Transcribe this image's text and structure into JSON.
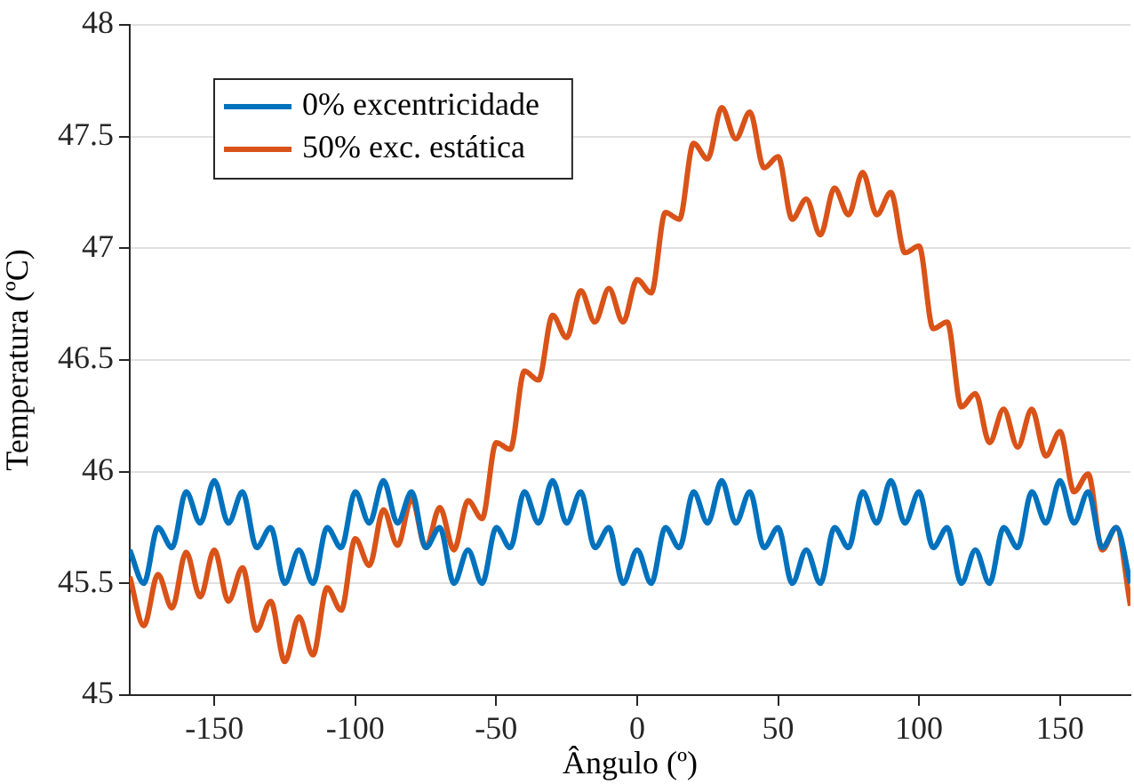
{
  "chart_data": {
    "type": "line",
    "xlabel": "Ângulo (º)",
    "ylabel": "Temperatura (ºC)",
    "x": [
      -180,
      -175,
      -170,
      -165,
      -160,
      -155,
      -150,
      -145,
      -140,
      -135,
      -130,
      -125,
      -120,
      -115,
      -110,
      -105,
      -100,
      -95,
      -90,
      -85,
      -80,
      -75,
      -70,
      -65,
      -60,
      -55,
      -50,
      -45,
      -40,
      -35,
      -30,
      -25,
      -20,
      -15,
      -10,
      -5,
      0,
      5,
      10,
      15,
      20,
      25,
      30,
      35,
      40,
      45,
      50,
      55,
      60,
      65,
      70,
      75,
      80,
      85,
      90,
      95,
      100,
      105,
      110,
      115,
      120,
      125,
      130,
      135,
      140,
      145,
      150,
      155,
      160,
      165,
      170,
      175
    ],
    "series": [
      {
        "name": "0% excentricidade",
        "color": "#0072bd",
        "values": [
          45.65,
          45.5,
          45.75,
          45.66,
          45.91,
          45.77,
          45.96,
          45.77,
          45.91,
          45.66,
          45.75,
          45.5,
          45.65,
          45.5,
          45.75,
          45.66,
          45.91,
          45.77,
          45.96,
          45.77,
          45.91,
          45.66,
          45.75,
          45.5,
          45.65,
          45.5,
          45.75,
          45.66,
          45.91,
          45.77,
          45.96,
          45.77,
          45.91,
          45.66,
          45.75,
          45.5,
          45.65,
          45.5,
          45.75,
          45.66,
          45.91,
          45.77,
          45.96,
          45.77,
          45.91,
          45.66,
          45.75,
          45.5,
          45.65,
          45.5,
          45.75,
          45.66,
          45.91,
          45.77,
          45.96,
          45.77,
          45.91,
          45.66,
          45.75,
          45.5,
          45.65,
          45.5,
          45.75,
          45.66,
          45.91,
          45.77,
          45.96,
          45.77,
          45.91,
          45.66,
          45.75,
          45.5
        ]
      },
      {
        "name": "50% exc. estática",
        "color": "#d95319",
        "values": [
          45.53,
          45.31,
          45.54,
          45.39,
          45.64,
          45.44,
          45.65,
          45.42,
          45.57,
          45.29,
          45.42,
          45.15,
          45.35,
          45.18,
          45.48,
          45.38,
          45.7,
          45.58,
          45.83,
          45.67,
          45.88,
          45.66,
          45.84,
          45.65,
          45.87,
          45.79,
          46.13,
          46.1,
          46.45,
          46.41,
          46.7,
          46.6,
          46.81,
          46.67,
          46.82,
          46.67,
          46.86,
          46.8,
          47.16,
          47.13,
          47.47,
          47.4,
          47.63,
          47.49,
          47.61,
          47.36,
          47.41,
          47.13,
          47.22,
          47.06,
          47.27,
          47.15,
          47.34,
          47.15,
          47.25,
          46.98,
          47.01,
          46.64,
          46.67,
          46.29,
          46.35,
          46.13,
          46.28,
          46.11,
          46.28,
          46.07,
          46.18,
          45.91,
          45.99,
          45.65,
          45.75,
          45.4
        ]
      }
    ],
    "xlim": [
      -180,
      175
    ],
    "xticks": [
      -150,
      -100,
      -50,
      0,
      50,
      100,
      150
    ],
    "ylim": [
      45,
      48
    ],
    "yticks": [
      45,
      45.5,
      46,
      46.5,
      47,
      47.5,
      48
    ],
    "grid": "y",
    "legend": "top left"
  }
}
